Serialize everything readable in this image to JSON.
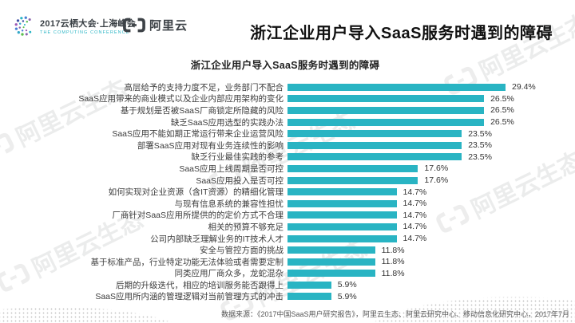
{
  "header": {
    "conference_logo": {
      "line1": "2017云栖大会·上海峰会",
      "line2": "THE COMPUTING CONFERENCE"
    },
    "aliyun_logo_text": "阿里云",
    "title": "浙江企业用户导入SaaS服务时遇到的障碍"
  },
  "watermark": {
    "text": "阿里云生态"
  },
  "chart_data": {
    "type": "bar",
    "orientation": "horizontal",
    "title": "浙江企业用户导入SaaS服务时遇到的障碍",
    "unit": "%",
    "bar_color": "#29b4c3",
    "xlim": [
      0,
      30
    ],
    "grid": false,
    "legend": false,
    "categories": [
      "高层给予的支持力度不足，业务部门不配合",
      "SaaS应用带来的商业模式以及企业内部应用架构的变化",
      "基于规划是否被SaaS厂商锁定所隐藏的风险",
      "缺乏SaaS应用选型的实践办法",
      "SaaS应用不能如期正常运行带来企业运营风险",
      "部署SaaS应用对现有业务连续性的影响",
      "缺乏行业最佳实践的参考",
      "SaaS应用上线周期是否可控",
      "SaaS应用投入是否可控",
      "如何实现对企业资源（含IT资源）的精细化管理",
      "与现有信息系统的兼容性担忧",
      "厂商针对SaaS应用所提供的的定价方式不合理",
      "相关的预算不够充足",
      "公司内部缺乏理解业务的IT技术人才",
      "安全与管控方面的挑战",
      "基于标准产品，行业特定功能无法体验或者需要定制",
      "同类应用厂商众多，龙蛇混杂",
      "后期的升级迭代，相应的培训服务能否跟得上",
      "SaaS应用所内涵的管理逻辑对当前管理方式的冲击"
    ],
    "values": [
      29.4,
      26.5,
      26.5,
      26.5,
      23.5,
      23.5,
      23.5,
      17.6,
      17.6,
      14.7,
      14.7,
      14.7,
      14.7,
      14.7,
      11.8,
      11.8,
      11.8,
      5.9,
      5.9
    ]
  },
  "footer": {
    "source": "数据来源：《2017中国SaaS用户研究报告》，阿里云生态、阿里云研究中心、移动信息化研究中心，2017年7月"
  }
}
